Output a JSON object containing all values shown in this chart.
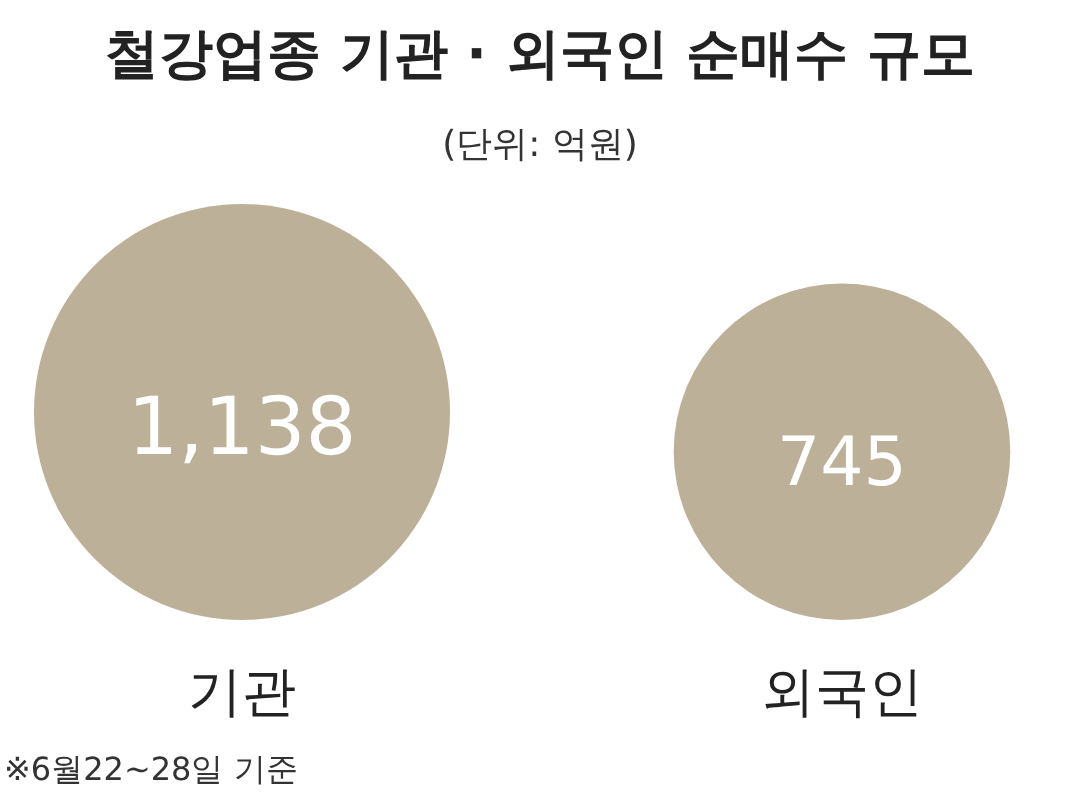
{
  "chart_data": {
    "type": "other",
    "title": "철강업종 기관 · 외국인 순매수 규모",
    "subtitle": "(단위: 억원)",
    "categories": [
      "기관",
      "외국인"
    ],
    "values": [
      1138,
      745
    ],
    "value_labels": [
      "1,138",
      "745"
    ],
    "color": "#bdb099",
    "annotations": [
      "※6월22~28일 기준"
    ]
  }
}
